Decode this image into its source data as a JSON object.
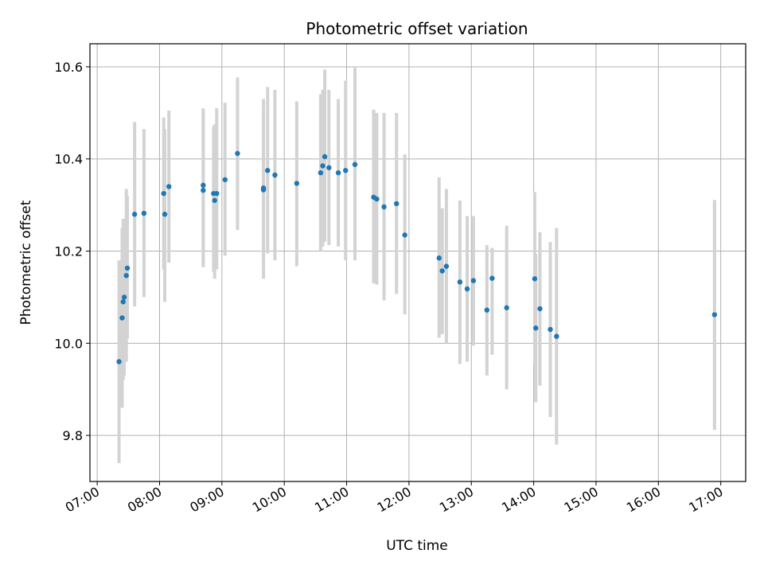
{
  "chart_data": {
    "type": "scatter",
    "title": "Photometric offset variation",
    "xlabel": "UTC time",
    "ylabel": "Photometric offset",
    "xlim": [
      "06:53",
      "17:24"
    ],
    "ylim": [
      9.7,
      10.65
    ],
    "x_ticks": [
      "07:00",
      "08:00",
      "09:00",
      "10:00",
      "11:00",
      "12:00",
      "13:00",
      "14:00",
      "15:00",
      "16:00",
      "17:00"
    ],
    "y_ticks": [
      9.8,
      10.0,
      10.2,
      10.4,
      10.6
    ],
    "grid": true,
    "colors": {
      "marker": "#1f77b4",
      "errorbar": "#d3d3d3",
      "grid": "#b0b0b0"
    },
    "points": [
      {
        "x": "07:21",
        "y": 9.96,
        "lo": 9.74,
        "hi": 10.18
      },
      {
        "x": "07:24",
        "y": 10.055,
        "lo": 9.86,
        "hi": 10.25
      },
      {
        "x": "07:25",
        "y": 10.09,
        "lo": 9.92,
        "hi": 10.27
      },
      {
        "x": "07:26",
        "y": 10.1,
        "lo": 9.93,
        "hi": 10.27
      },
      {
        "x": "07:28",
        "y": 10.147,
        "lo": 9.96,
        "hi": 10.335
      },
      {
        "x": "07:29",
        "y": 10.163,
        "lo": 10.01,
        "hi": 10.32
      },
      {
        "x": "07:36",
        "y": 10.28,
        "lo": 10.08,
        "hi": 10.48
      },
      {
        "x": "07:45",
        "y": 10.282,
        "lo": 10.1,
        "hi": 10.465
      },
      {
        "x": "08:04",
        "y": 10.325,
        "lo": 10.16,
        "hi": 10.49
      },
      {
        "x": "08:05",
        "y": 10.28,
        "lo": 10.09,
        "hi": 10.465
      },
      {
        "x": "08:09",
        "y": 10.34,
        "lo": 10.175,
        "hi": 10.505
      },
      {
        "x": "08:42",
        "y": 10.343,
        "lo": 10.175,
        "hi": 10.51
      },
      {
        "x": "08:42",
        "y": 10.332,
        "lo": 10.165,
        "hi": 10.5
      },
      {
        "x": "08:52",
        "y": 10.325,
        "lo": 10.155,
        "hi": 10.47
      },
      {
        "x": "08:53",
        "y": 10.31,
        "lo": 10.14,
        "hi": 10.475
      },
      {
        "x": "08:55",
        "y": 10.325,
        "lo": 10.16,
        "hi": 10.51
      },
      {
        "x": "09:03",
        "y": 10.355,
        "lo": 10.19,
        "hi": 10.522
      },
      {
        "x": "09:15",
        "y": 10.412,
        "lo": 10.246,
        "hi": 10.577
      },
      {
        "x": "09:40",
        "y": 10.337,
        "lo": 10.14,
        "hi": 10.53
      },
      {
        "x": "09:40",
        "y": 10.333,
        "lo": 10.18,
        "hi": 10.5
      },
      {
        "x": "09:44",
        "y": 10.375,
        "lo": 10.195,
        "hi": 10.556
      },
      {
        "x": "09:51",
        "y": 10.365,
        "lo": 10.18,
        "hi": 10.55
      },
      {
        "x": "10:12",
        "y": 10.347,
        "lo": 10.167,
        "hi": 10.525
      },
      {
        "x": "10:35",
        "y": 10.37,
        "lo": 10.2,
        "hi": 10.54
      },
      {
        "x": "10:37",
        "y": 10.385,
        "lo": 10.21,
        "hi": 10.55
      },
      {
        "x": "10:39",
        "y": 10.405,
        "lo": 10.22,
        "hi": 10.594
      },
      {
        "x": "10:43",
        "y": 10.381,
        "lo": 10.213,
        "hi": 10.55
      },
      {
        "x": "10:52",
        "y": 10.37,
        "lo": 10.21,
        "hi": 10.53
      },
      {
        "x": "10:59",
        "y": 10.375,
        "lo": 10.18,
        "hi": 10.57
      },
      {
        "x": "11:08",
        "y": 10.388,
        "lo": 10.18,
        "hi": 10.598
      },
      {
        "x": "11:26",
        "y": 10.317,
        "lo": 10.13,
        "hi": 10.507
      },
      {
        "x": "11:29",
        "y": 10.313,
        "lo": 10.127,
        "hi": 10.5
      },
      {
        "x": "11:36",
        "y": 10.296,
        "lo": 10.093,
        "hi": 10.5
      },
      {
        "x": "11:48",
        "y": 10.303,
        "lo": 10.107,
        "hi": 10.5
      },
      {
        "x": "11:56",
        "y": 10.235,
        "lo": 10.063,
        "hi": 10.41
      },
      {
        "x": "12:29",
        "y": 10.185,
        "lo": 10.012,
        "hi": 10.36
      },
      {
        "x": "12:32",
        "y": 10.157,
        "lo": 10.02,
        "hi": 10.293
      },
      {
        "x": "12:36",
        "y": 10.167,
        "lo": 10.0,
        "hi": 10.335
      },
      {
        "x": "12:49",
        "y": 10.133,
        "lo": 9.955,
        "hi": 10.31
      },
      {
        "x": "12:56",
        "y": 10.118,
        "lo": 9.96,
        "hi": 10.276
      },
      {
        "x": "13:02",
        "y": 10.136,
        "lo": 9.995,
        "hi": 10.276
      },
      {
        "x": "13:15",
        "y": 10.072,
        "lo": 9.93,
        "hi": 10.213
      },
      {
        "x": "13:20",
        "y": 10.141,
        "lo": 9.975,
        "hi": 10.207
      },
      {
        "x": "13:34",
        "y": 10.077,
        "lo": 9.9,
        "hi": 10.255
      },
      {
        "x": "14:01",
        "y": 10.14,
        "lo": 9.954,
        "hi": 10.328
      },
      {
        "x": "14:02",
        "y": 10.033,
        "lo": 9.872,
        "hi": 10.193
      },
      {
        "x": "14:06",
        "y": 10.075,
        "lo": 9.908,
        "hi": 10.241
      },
      {
        "x": "14:16",
        "y": 10.03,
        "lo": 9.84,
        "hi": 10.22
      },
      {
        "x": "14:22",
        "y": 10.015,
        "lo": 9.78,
        "hi": 10.25
      },
      {
        "x": "16:54",
        "y": 10.062,
        "lo": 9.812,
        "hi": 10.311
      }
    ]
  }
}
